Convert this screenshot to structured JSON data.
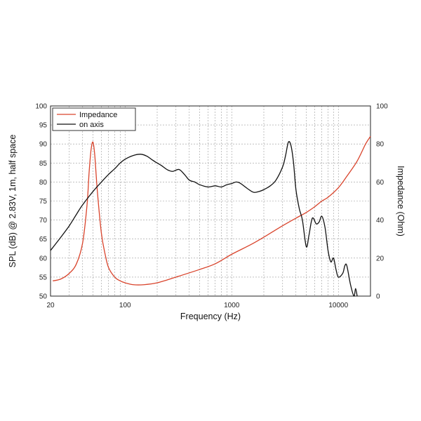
{
  "chart_data": {
    "type": "line",
    "xlabel": "Frequency (Hz)",
    "ylabel_left": "SPL (dB) @ 2.83V, 1m, half space",
    "ylabel_right": "Impedance (Ohm)",
    "x_scale": "log",
    "xlim": [
      20,
      20000
    ],
    "ylim_left": [
      50,
      100
    ],
    "ylim_right": [
      0,
      100
    ],
    "x_ticks": [
      20,
      100,
      1000,
      10000
    ],
    "y_ticks_left": [
      50,
      55,
      60,
      65,
      70,
      75,
      80,
      85,
      90,
      95,
      100
    ],
    "y_ticks_right": [
      0,
      20,
      40,
      60,
      80,
      100
    ],
    "grid": true,
    "legend": {
      "placement": "top-left"
    },
    "series": [
      {
        "name": "Impedance",
        "color": "#d9442c",
        "axis": "right",
        "points": [
          [
            21,
            8
          ],
          [
            25,
            9
          ],
          [
            30,
            12
          ],
          [
            35,
            17
          ],
          [
            40,
            28
          ],
          [
            44,
            48
          ],
          [
            46,
            65
          ],
          [
            48,
            77
          ],
          [
            50,
            81
          ],
          [
            52,
            74
          ],
          [
            55,
            55
          ],
          [
            60,
            33
          ],
          [
            65,
            22
          ],
          [
            70,
            15
          ],
          [
            80,
            10
          ],
          [
            90,
            8
          ],
          [
            100,
            7
          ],
          [
            120,
            6
          ],
          [
            150,
            6
          ],
          [
            200,
            7
          ],
          [
            300,
            10
          ],
          [
            500,
            14
          ],
          [
            700,
            17
          ],
          [
            1000,
            22
          ],
          [
            1500,
            27
          ],
          [
            2000,
            31
          ],
          [
            3000,
            37
          ],
          [
            4000,
            41
          ],
          [
            5000,
            44
          ],
          [
            6000,
            47
          ],
          [
            7000,
            50
          ],
          [
            8000,
            52
          ],
          [
            10000,
            57
          ],
          [
            12000,
            63
          ],
          [
            15000,
            71
          ],
          [
            18000,
            80
          ],
          [
            20000,
            84
          ]
        ]
      },
      {
        "name": "on axis",
        "color": "#111111",
        "axis": "left",
        "points": [
          [
            20,
            62
          ],
          [
            25,
            65.5
          ],
          [
            30,
            68.5
          ],
          [
            35,
            71.5
          ],
          [
            40,
            74
          ],
          [
            50,
            77.5
          ],
          [
            60,
            80
          ],
          [
            70,
            82
          ],
          [
            80,
            83.5
          ],
          [
            90,
            85
          ],
          [
            100,
            86
          ],
          [
            120,
            87
          ],
          [
            140,
            87.3
          ],
          [
            160,
            86.8
          ],
          [
            180,
            85.8
          ],
          [
            200,
            85
          ],
          [
            220,
            84.3
          ],
          [
            250,
            83.2
          ],
          [
            280,
            82.8
          ],
          [
            320,
            83.3
          ],
          [
            360,
            82
          ],
          [
            400,
            80.5
          ],
          [
            450,
            80
          ],
          [
            500,
            79.3
          ],
          [
            600,
            78.7
          ],
          [
            700,
            79
          ],
          [
            800,
            78.7
          ],
          [
            900,
            79.3
          ],
          [
            1000,
            79.6
          ],
          [
            1100,
            80
          ],
          [
            1200,
            79.7
          ],
          [
            1400,
            78.3
          ],
          [
            1600,
            77.3
          ],
          [
            1800,
            77.5
          ],
          [
            2000,
            78
          ],
          [
            2300,
            79
          ],
          [
            2600,
            80.5
          ],
          [
            3000,
            84
          ],
          [
            3200,
            87
          ],
          [
            3400,
            90.5
          ],
          [
            3600,
            89.5
          ],
          [
            3800,
            85
          ],
          [
            4000,
            78
          ],
          [
            4300,
            73
          ],
          [
            4600,
            70
          ],
          [
            5000,
            63
          ],
          [
            5300,
            66
          ],
          [
            5700,
            70.5
          ],
          [
            6200,
            69
          ],
          [
            6600,
            69.5
          ],
          [
            7000,
            71
          ],
          [
            7500,
            68
          ],
          [
            8000,
            62
          ],
          [
            8500,
            59
          ],
          [
            9000,
            60
          ],
          [
            9500,
            57
          ],
          [
            10000,
            55
          ],
          [
            11000,
            56
          ],
          [
            11500,
            58
          ],
          [
            12000,
            58
          ],
          [
            13000,
            53
          ],
          [
            14000,
            50
          ],
          [
            14500,
            52
          ],
          [
            15000,
            50
          ]
        ]
      }
    ]
  }
}
